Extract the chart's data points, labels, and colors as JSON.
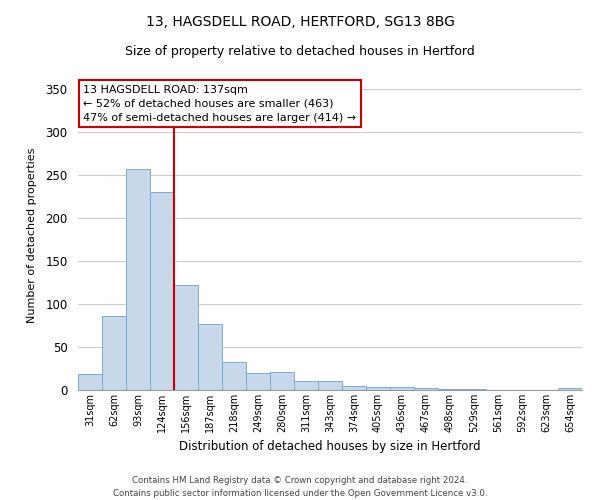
{
  "title1": "13, HAGSDELL ROAD, HERTFORD, SG13 8BG",
  "title2": "Size of property relative to detached houses in Hertford",
  "xlabel": "Distribution of detached houses by size in Hertford",
  "ylabel": "Number of detached properties",
  "bar_color": "#c8d8eb",
  "bar_edge_color": "#7aaacf",
  "vline_color": "#cc0000",
  "vline_x_idx": 3.5,
  "categories": [
    "31sqm",
    "62sqm",
    "93sqm",
    "124sqm",
    "156sqm",
    "187sqm",
    "218sqm",
    "249sqm",
    "280sqm",
    "311sqm",
    "343sqm",
    "374sqm",
    "405sqm",
    "436sqm",
    "467sqm",
    "498sqm",
    "529sqm",
    "561sqm",
    "592sqm",
    "623sqm",
    "654sqm"
  ],
  "values": [
    19,
    86,
    257,
    230,
    122,
    77,
    33,
    20,
    21,
    11,
    10,
    5,
    4,
    3,
    2,
    1,
    1,
    0,
    0,
    0,
    2
  ],
  "ylim": [
    0,
    360
  ],
  "yticks": [
    0,
    50,
    100,
    150,
    200,
    250,
    300,
    350
  ],
  "annotation_title": "13 HAGSDELL ROAD: 137sqm",
  "annotation_line1": "← 52% of detached houses are smaller (463)",
  "annotation_line2": "47% of semi-detached houses are larger (414) →",
  "footer1": "Contains HM Land Registry data © Crown copyright and database right 2024.",
  "footer2": "Contains public sector information licensed under the Open Government Licence v3.0.",
  "background_color": "#ffffff",
  "grid_color": "#cccccc"
}
